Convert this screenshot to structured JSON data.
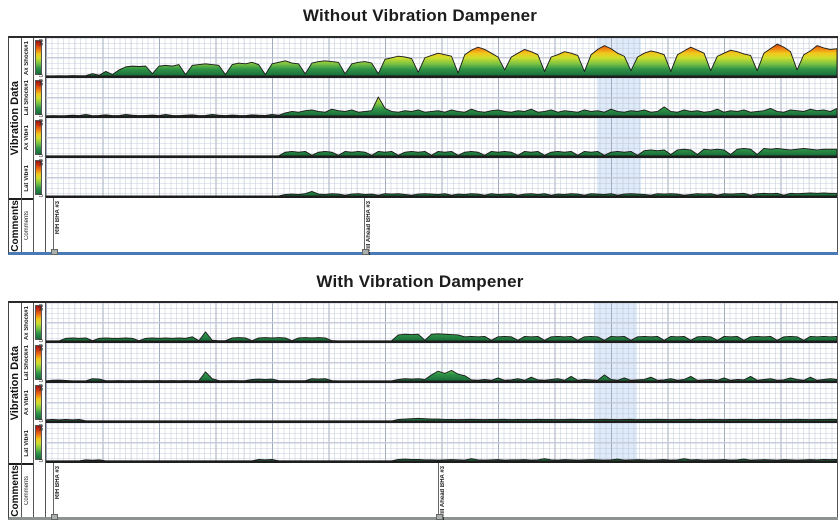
{
  "scale": {
    "max": "50",
    "min": "0"
  },
  "sidebar": {
    "group_label": "Vibration Data",
    "comments_label": "Comments",
    "comments_sub_label": "Comments"
  },
  "colors": {
    "heat_scale_top_to_bottom": [
      "#9e1313",
      "#cc3311",
      "#ee7711",
      "#f2c81c",
      "#cede2e",
      "#7bc343",
      "#2f9447",
      "#176b38"
    ],
    "highlight_band": "#c6dbf4",
    "chart1_bottom_rule": "#4a7ab5",
    "chart2_bottom_rule": "#8d938e"
  },
  "chart_data": [
    {
      "type": "area",
      "title": "Without Vibration Dampener",
      "ylim": [
        0,
        50
      ],
      "grid": "on",
      "highlight_band": {
        "x_pct": 69.6,
        "width_pct": 5.6
      },
      "comments": [
        {
          "label": "RIH BHA #3",
          "x_pct": 0.9
        },
        {
          "label": "Drill Ahead BHA #3",
          "x_pct": 40.2
        }
      ],
      "tracks": [
        {
          "name": "Ax Shock#1",
          "values": [
            0.3,
            0.2,
            0.4,
            0.3,
            0.5,
            0.4,
            0.6,
            3,
            1,
            6,
            2,
            8,
            12,
            13,
            12.5,
            13,
            3,
            13,
            14,
            13,
            15,
            2,
            14,
            15,
            16,
            15,
            14,
            2,
            15,
            17,
            16,
            18,
            15,
            2,
            16,
            18,
            20,
            17,
            16,
            3,
            17,
            19,
            20,
            19,
            18,
            3,
            16,
            18,
            19,
            17,
            3,
            22,
            24,
            26,
            25,
            23,
            5,
            24,
            27,
            30,
            28,
            26,
            4,
            28,
            34,
            38,
            35,
            30,
            25,
            8,
            25,
            30,
            35,
            32,
            28,
            6,
            25,
            28,
            32,
            30,
            27,
            6,
            28,
            35,
            40,
            36,
            30,
            26,
            7,
            25,
            30,
            33,
            31,
            28,
            6,
            28,
            33,
            38,
            34,
            30,
            7,
            26,
            30,
            34,
            32,
            29,
            27,
            7,
            30,
            36,
            42,
            38,
            32,
            8,
            28,
            33,
            40,
            37,
            35,
            36
          ]
        },
        {
          "name": "Lat Shock#1",
          "values": [
            0.3,
            0.5,
            0.4,
            0.6,
            1,
            0.5,
            2,
            0.4,
            0.8,
            1.5,
            0.5,
            0.6,
            2,
            1,
            0.5,
            0.8,
            1.2,
            0.6,
            2,
            0.8,
            0.5,
            1,
            1.5,
            0.6,
            0.8,
            2,
            1,
            0.5,
            1.2,
            0.8,
            0.6,
            1.5,
            1,
            0.8,
            2,
            1,
            4,
            6,
            5,
            7,
            8,
            6,
            5,
            9,
            7,
            6,
            8,
            5,
            6,
            7,
            25,
            10,
            6,
            5,
            7,
            6,
            8,
            5,
            6,
            7,
            5,
            8,
            6,
            5,
            9,
            6,
            5,
            7,
            8,
            6,
            5,
            7,
            6,
            9,
            5,
            6,
            8,
            5,
            7,
            6,
            5,
            8,
            6,
            7,
            5,
            9,
            6,
            5,
            7,
            6,
            8,
            5,
            6,
            12,
            6,
            5,
            8,
            6,
            7,
            5,
            6,
            9,
            5,
            7,
            6,
            8,
            5,
            6,
            7,
            10,
            6,
            5,
            8,
            7,
            6,
            9,
            7,
            8,
            6,
            10
          ]
        },
        {
          "name": "Ax Vib#1",
          "values": [
            0.2,
            0.2,
            0.2,
            0.2,
            0.2,
            0.2,
            0.2,
            0.2,
            0.2,
            0.2,
            0.2,
            0.2,
            0.2,
            0.2,
            0.2,
            0.2,
            0.2,
            0.2,
            0.2,
            0.2,
            0.2,
            0.2,
            0.2,
            0.2,
            0.2,
            0.2,
            0.2,
            0.2,
            0.2,
            0.2,
            0.2,
            0.2,
            0.2,
            0.2,
            0.2,
            0.2,
            5,
            6,
            5,
            6,
            1,
            5,
            6,
            5,
            1,
            6,
            5,
            6,
            5,
            1,
            6,
            5,
            6,
            1,
            5,
            6,
            5,
            6,
            1,
            6,
            5,
            6,
            1,
            5,
            6,
            5,
            1,
            6,
            5,
            6,
            5,
            1,
            6,
            5,
            6,
            1,
            5,
            6,
            5,
            6,
            1,
            6,
            5,
            6,
            1,
            5,
            6,
            5,
            6,
            1,
            7,
            8,
            7,
            8,
            2,
            8,
            9,
            8,
            2,
            9,
            8,
            9,
            8,
            2,
            9,
            10,
            9,
            2,
            10,
            9,
            10,
            9,
            8,
            9,
            10,
            9,
            8,
            9,
            9,
            9
          ]
        },
        {
          "name": "Lat Vib#1",
          "values": [
            0.1,
            0.1,
            0.1,
            0.1,
            0.1,
            0.1,
            0.1,
            0.1,
            0.1,
            0.1,
            0.1,
            0.1,
            0.1,
            0.1,
            0.1,
            0.1,
            0.1,
            0.1,
            0.1,
            0.1,
            0.1,
            0.1,
            0.1,
            0.1,
            0.1,
            0.1,
            0.1,
            0.1,
            0.1,
            0.1,
            0.1,
            0.1,
            0.1,
            0.1,
            0.1,
            0.1,
            2,
            2.5,
            2,
            3,
            6,
            2.5,
            2,
            3,
            2.5,
            1,
            2.5,
            3,
            2,
            2.5,
            1,
            3,
            2.5,
            3,
            2,
            1,
            2.5,
            3,
            2.5,
            2,
            3,
            1,
            2.5,
            2,
            3,
            2.5,
            1,
            3,
            2,
            2.5,
            3,
            1,
            2.5,
            3,
            2,
            3,
            1,
            2.5,
            2,
            3,
            2.5,
            1,
            3,
            2.5,
            2,
            3,
            1,
            2.5,
            3,
            2.5,
            2,
            1,
            3,
            2.5,
            3,
            2.5,
            1,
            2,
            3,
            2.5,
            3,
            1,
            3,
            2.5,
            3,
            3.5,
            1,
            3,
            3.5,
            3,
            3.5,
            1,
            3.5,
            3,
            3.5,
            4,
            3.5,
            4,
            3.5,
            3.5
          ]
        }
      ]
    },
    {
      "type": "area",
      "title": "With Vibration Dampener",
      "ylim": [
        0,
        50
      ],
      "grid": "on",
      "highlight_band": {
        "x_pct": 69.3,
        "width_pct": 5.4
      },
      "comments": [
        {
          "label": "RIH BHA #3",
          "x_pct": 0.9
        },
        {
          "label": "Drill Ahead BHA #3",
          "x_pct": 49.5
        }
      ],
      "tracks": [
        {
          "name": "Ax Shock#1",
          "values": [
            0.3,
            0.3,
            0.3,
            3.5,
            4,
            3.5,
            4,
            0.5,
            3.5,
            4,
            3.5,
            3.5,
            4,
            3.5,
            0.5,
            3.5,
            4,
            3.5,
            4,
            3.5,
            4,
            3.5,
            5.5,
            0.5,
            12,
            1,
            0.4,
            0.4,
            4,
            4.5,
            4,
            0.5,
            4,
            4.5,
            4,
            4.5,
            4,
            0.5,
            4,
            4.5,
            4,
            4.5,
            4,
            0.5,
            0.3,
            0.3,
            0.3,
            0.3,
            0.3,
            0.3,
            0.3,
            0.3,
            0.3,
            8,
            9,
            8.5,
            9,
            1,
            9,
            9.5,
            9,
            8.5,
            8,
            5.5,
            6,
            5.5,
            6,
            1,
            5.5,
            6,
            5.5,
            1,
            6,
            5.5,
            6,
            1,
            5.5,
            6,
            5.5,
            6,
            1,
            5.5,
            6,
            5.5,
            1,
            6,
            5.5,
            6,
            1,
            5.5,
            6,
            5.5,
            6,
            1,
            6,
            5.5,
            6,
            1,
            5.5,
            6,
            5.5,
            1,
            6,
            5.5,
            6,
            1,
            5.5,
            6,
            5.5,
            6,
            1,
            5.5,
            6,
            5.5,
            1,
            6,
            5.5,
            6,
            5.5,
            6
          ]
        },
        {
          "name": "Lat Shock#1",
          "values": [
            0.3,
            1,
            1.2,
            0.8,
            0.3,
            0.3,
            0.3,
            3,
            2.5,
            0.4,
            0.4,
            0.5,
            0.4,
            0.5,
            0.4,
            0.5,
            0.4,
            0.5,
            0.4,
            0.5,
            0.4,
            0.5,
            0.4,
            0.5,
            12,
            3,
            0.5,
            0.4,
            0.5,
            0.4,
            0.5,
            2,
            2.5,
            2,
            2.5,
            0.5,
            0.4,
            0.4,
            0.4,
            0.4,
            3,
            2.5,
            3,
            0.5,
            0.3,
            0.3,
            0.3,
            0.3,
            0.3,
            0.3,
            0.3,
            0.3,
            0.3,
            2,
            3,
            2.5,
            3,
            2,
            8,
            13,
            10,
            14,
            9,
            7,
            1.5,
            1,
            2,
            1,
            4,
            1,
            1.5,
            3,
            1,
            5,
            1.5,
            1,
            2,
            3,
            1,
            6,
            1,
            2,
            1.5,
            1,
            8,
            2,
            1,
            4,
            1,
            1.5,
            2,
            5,
            1,
            1.5,
            3,
            1,
            2,
            6,
            1,
            1.5,
            2,
            1,
            4,
            1,
            2,
            1.5,
            6,
            1,
            2,
            3,
            1,
            1.5,
            4,
            2,
            1,
            5,
            1,
            2,
            3,
            2
          ]
        },
        {
          "name": "Ax Vib#1",
          "values": [
            1.5,
            2,
            1.5,
            2,
            1.5,
            2,
            0.3,
            0.15,
            0.15,
            0.15,
            0.15,
            0.15,
            0.15,
            0.15,
            0.15,
            0.15,
            0.15,
            0.15,
            0.15,
            0.15,
            0.15,
            0.15,
            0.15,
            0.15,
            0.15,
            0.15,
            0.15,
            0.15,
            0.15,
            0.15,
            0.15,
            0.15,
            0.15,
            0.15,
            0.15,
            0.15,
            0.15,
            0.15,
            0.15,
            0.15,
            0.15,
            0.15,
            0.15,
            0.15,
            0.15,
            0.15,
            0.15,
            0.15,
            0.15,
            0.15,
            0.15,
            0.15,
            0.15,
            2,
            2.5,
            3,
            3.5,
            3,
            2.5,
            2.5,
            2,
            2,
            1.8,
            2,
            2.2,
            2,
            1.8,
            2,
            2,
            2.2,
            1.8,
            2,
            2,
            1.8,
            2.2,
            2,
            2,
            1.8,
            2,
            2.2,
            2,
            1.8,
            2,
            2,
            2.2,
            2,
            1.8,
            2,
            2.2,
            1.8,
            2,
            2,
            2.2,
            2,
            1.8,
            2,
            2,
            2.2,
            1.8,
            2,
            2.2,
            2,
            1.8,
            2,
            2,
            2.2,
            2,
            1.8,
            2.2,
            2,
            2,
            1.8,
            2,
            2.2,
            2,
            1.8,
            2,
            2,
            2.2,
            2
          ]
        },
        {
          "name": "Lat Vib#1",
          "values": [
            0.2,
            0.2,
            0.2,
            0.2,
            0.2,
            0.2,
            1.5,
            1,
            1.5,
            0.3,
            0.2,
            0.2,
            0.2,
            0.2,
            0.2,
            0.2,
            0.2,
            0.2,
            0.2,
            0.2,
            0.2,
            0.2,
            0.2,
            0.2,
            0.2,
            0.2,
            0.2,
            0.2,
            0.2,
            0.2,
            0.2,
            0.2,
            2,
            1.5,
            2,
            0.3,
            0.3,
            0.3,
            0.3,
            0.3,
            0.3,
            0.3,
            0.3,
            0.3,
            0.3,
            0.3,
            0.3,
            0.3,
            0.3,
            0.3,
            0.3,
            0.3,
            0.3,
            2,
            2.5,
            2,
            2,
            1.5,
            1.5,
            1.2,
            1.5,
            1.8,
            1.5,
            1.2,
            3,
            1.5,
            1.2,
            1.5,
            1.8,
            1.2,
            1.5,
            1.5,
            1.8,
            1.2,
            1.5,
            3,
            1.5,
            1.2,
            1.8,
            1.5,
            1.2,
            1.5,
            1.8,
            1.5,
            1.2,
            1.5,
            2.5,
            1.2,
            1.5,
            1.8,
            1.5,
            1.2,
            1.5,
            1.8,
            1.2,
            1.5,
            3,
            1.5,
            1.8,
            1.2,
            1.5,
            1.5,
            1.8,
            1.2,
            1.5,
            2.5,
            1.2,
            1.5,
            1.8,
            1.5,
            1.2,
            1.8,
            1.5,
            1.2,
            1.5,
            1.8,
            1.5,
            2,
            1.8,
            2
          ]
        }
      ]
    }
  ]
}
